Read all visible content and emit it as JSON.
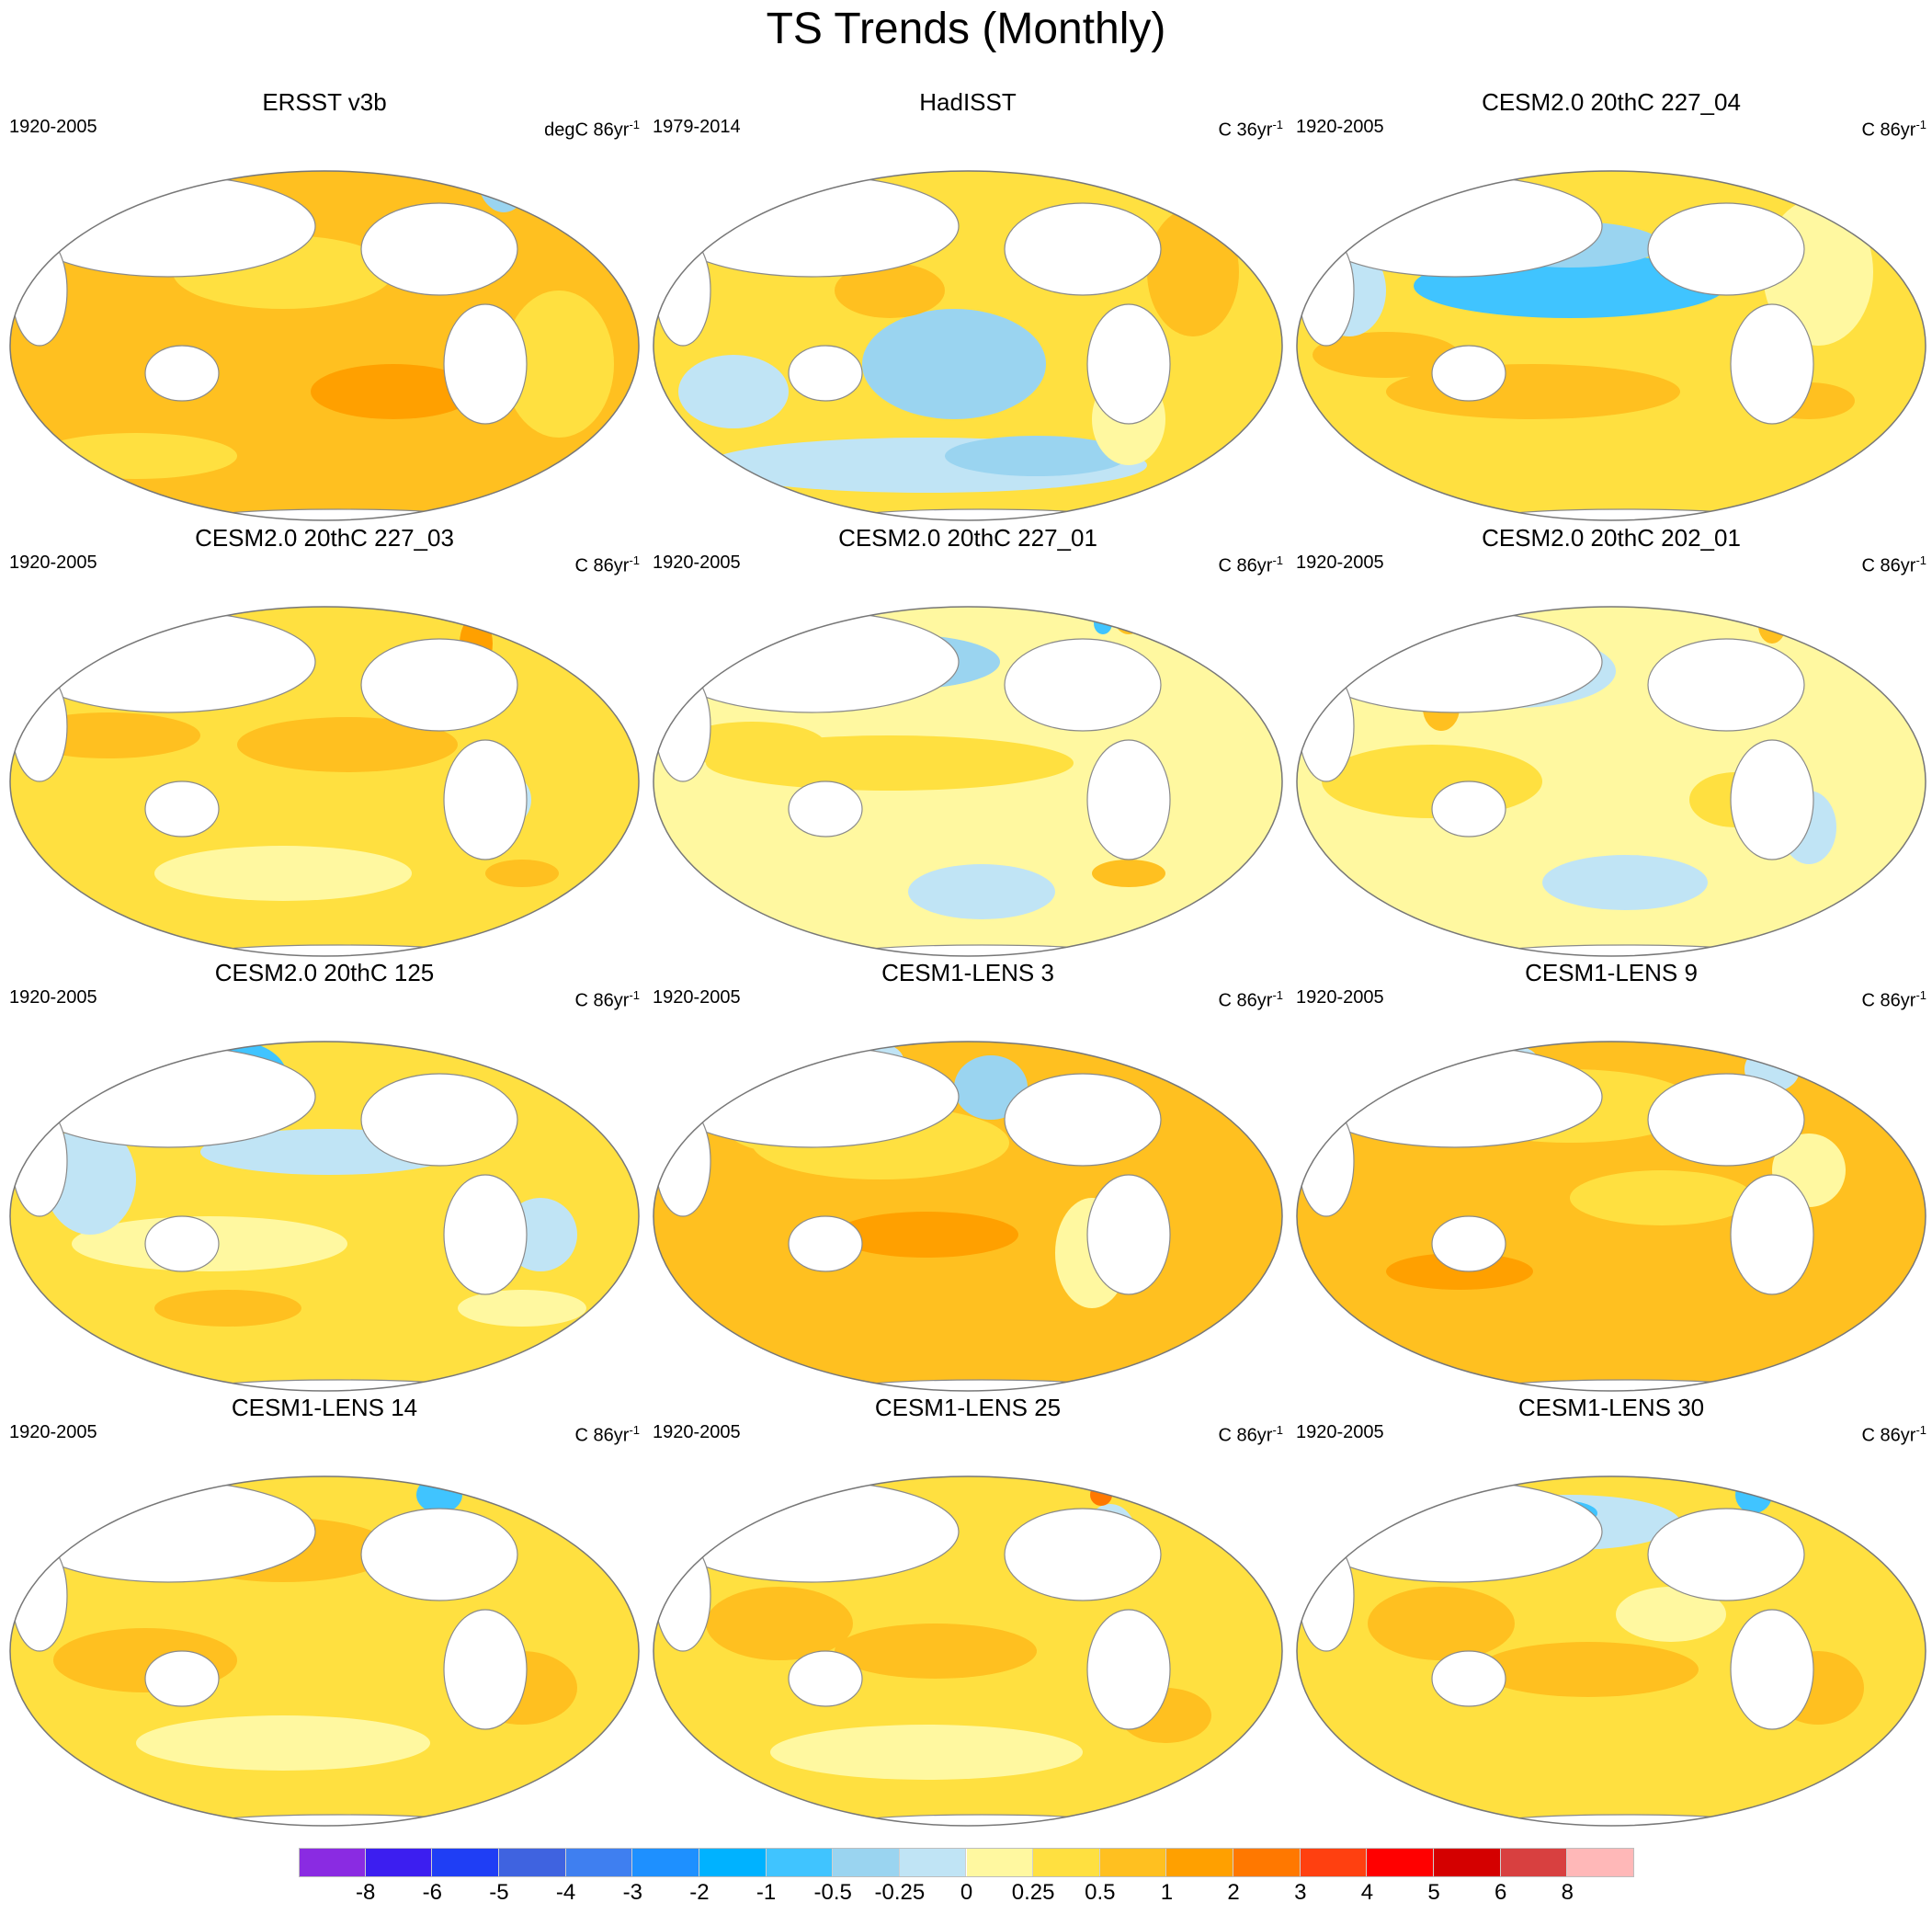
{
  "title": "TS Trends (Monthly)",
  "panels": [
    {
      "id": "ersst",
      "title": "ERSST v3b",
      "period": "1920-2005",
      "units_base": "degC 86yr",
      "units_exp": "-1",
      "pattern": "warm"
    },
    {
      "id": "hadisst",
      "title": "HadISST",
      "period": "1979-2014",
      "units_base": "C 36yr",
      "units_exp": "-1",
      "pattern": "hadisst"
    },
    {
      "id": "cesm2-227-04",
      "title": "CESM2.0 20thC 227_04",
      "period": "1920-2005",
      "units_base": "C 86yr",
      "units_exp": "-1",
      "pattern": "cool-pacific"
    },
    {
      "id": "cesm2-227-03",
      "title": "CESM2.0 20thC 227_03",
      "period": "1920-2005",
      "units_base": "C 86yr",
      "units_exp": "-1",
      "pattern": "mixed-a"
    },
    {
      "id": "cesm2-227-01",
      "title": "CESM2.0 20thC 227_01",
      "period": "1920-2005",
      "units_base": "C 86yr",
      "units_exp": "-1",
      "pattern": "mixed-b"
    },
    {
      "id": "cesm2-202-01",
      "title": "CESM2.0 20thC 202_01",
      "period": "1920-2005",
      "units_base": "C 86yr",
      "units_exp": "-1",
      "pattern": "mixed-c"
    },
    {
      "id": "cesm2-125",
      "title": "CESM2.0 20thC 125",
      "period": "1920-2005",
      "units_base": "C 86yr",
      "units_exp": "-1",
      "pattern": "mixed-d"
    },
    {
      "id": "lens-3",
      "title": "CESM1-LENS 3",
      "period": "1920-2005",
      "units_base": "C 86yr",
      "units_exp": "-1",
      "pattern": "lens-a"
    },
    {
      "id": "lens-9",
      "title": "CESM1-LENS 9",
      "period": "1920-2005",
      "units_base": "C 86yr",
      "units_exp": "-1",
      "pattern": "lens-b"
    },
    {
      "id": "lens-14",
      "title": "CESM1-LENS 14",
      "period": "1920-2005",
      "units_base": "C 86yr",
      "units_exp": "-1",
      "pattern": "lens-c"
    },
    {
      "id": "lens-25",
      "title": "CESM1-LENS 25",
      "period": "1920-2005",
      "units_base": "C 86yr",
      "units_exp": "-1",
      "pattern": "lens-d"
    },
    {
      "id": "lens-30",
      "title": "CESM1-LENS 30",
      "period": "1920-2005",
      "units_base": "C 86yr",
      "units_exp": "-1",
      "pattern": "lens-e"
    }
  ],
  "colorbar": {
    "colors": [
      "#8a2be2",
      "#3c1ef0",
      "#1f3ef5",
      "#3f63e0",
      "#3f7ff0",
      "#1e90ff",
      "#00b2ff",
      "#40c4ff",
      "#9ad4f0",
      "#c0e4f5",
      "#fff8a0",
      "#ffe040",
      "#ffc020",
      "#ffa000",
      "#ff7800",
      "#ff4010",
      "#ff0000",
      "#d40000",
      "#d84040",
      "#ffb8b8"
    ],
    "labels": [
      "-8",
      "-6",
      "-5",
      "-4",
      "-3",
      "-2",
      "-1",
      "-0.5",
      "-0.25",
      "0",
      "0.25",
      "0.5",
      "1",
      "2",
      "3",
      "4",
      "5",
      "6",
      "8"
    ]
  }
}
